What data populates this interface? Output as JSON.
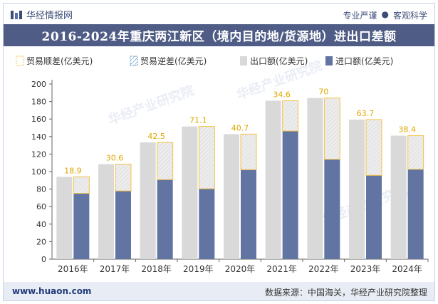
{
  "header": {
    "brand_name": "华经情报网",
    "slogan_left": "专业严谨",
    "slogan_dot": "●",
    "slogan_right": "客观科学"
  },
  "title": "2016-2024年重庆两江新区（境内目的地/货源地）进出口差额",
  "footer": {
    "url": "www.huaon.com",
    "source": "数据来源：中国海关，华经产业研究院整理"
  },
  "watermark": "华经产业研究院",
  "colors": {
    "export": "#d9d9d9",
    "import": "#6274a2",
    "surplus_border": "#f5c242",
    "title_bg": "#4f5d86",
    "label": "#e0a800"
  },
  "chart_data": {
    "type": "bar",
    "categories": [
      "2016年",
      "2017年",
      "2018年",
      "2019年",
      "2020年",
      "2021年",
      "2022年",
      "2023年",
      "2024年"
    ],
    "series": [
      {
        "name": "出口额(亿美元)",
        "values": [
          94,
          108.5,
          133.3,
          151.5,
          142.8,
          180.9,
          184,
          159.4,
          141
        ]
      },
      {
        "name": "进口额(亿美元)",
        "values": [
          75.1,
          77.9,
          90.8,
          80.4,
          102.1,
          146.3,
          114,
          95.7,
          102.6
        ]
      },
      {
        "name": "贸易顺差(亿美元)",
        "values": [
          18.9,
          30.6,
          42.5,
          71.1,
          40.7,
          34.6,
          70,
          63.7,
          38.4
        ]
      },
      {
        "name": "贸易逆差(亿美元)",
        "values": [
          0,
          0,
          0,
          0,
          0,
          0,
          0,
          0,
          0
        ]
      }
    ],
    "legend": [
      "贸易顺差(亿美元)",
      "贸易逆差(亿美元)",
      "出口额(亿美元)",
      "进口额(亿美元)"
    ],
    "legend_position": "top",
    "ylim": [
      0,
      200
    ],
    "yticks": [
      0,
      20,
      40,
      60,
      80,
      100,
      120,
      140,
      160,
      180,
      200
    ],
    "xlabel": "",
    "ylabel": "",
    "grid": false
  }
}
